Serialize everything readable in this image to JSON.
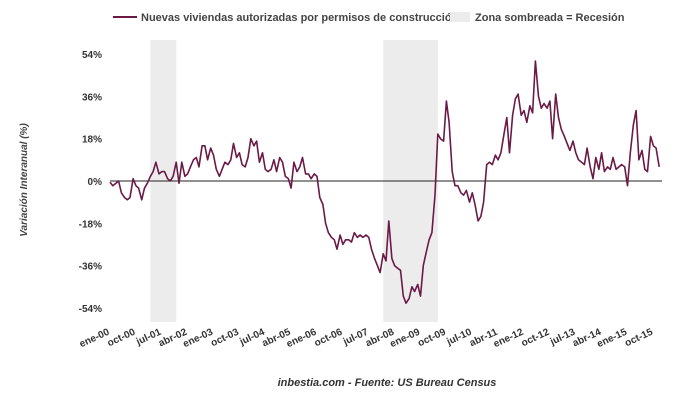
{
  "chart_data": {
    "type": "line",
    "title": "",
    "ylabel": "Variación Interanual (%)",
    "caption": "inbestia.com - Fuente: US Bureau Census",
    "ylim": [
      -60,
      60
    ],
    "yticks": [
      54,
      36,
      18,
      0,
      -18,
      -36,
      -54
    ],
    "ytick_labels": [
      "54%",
      "36%",
      "18%",
      "0%",
      "-18%",
      "-36%",
      "-54%"
    ],
    "xlim": [
      2000.0,
      2016.0
    ],
    "xticks": [
      {
        "label": "ene-00",
        "x": 2000.0
      },
      {
        "label": "oct-00",
        "x": 2000.75
      },
      {
        "label": "jul-01",
        "x": 2001.5
      },
      {
        "label": "abr-02",
        "x": 2002.25
      },
      {
        "label": "ene-03",
        "x": 2003.0
      },
      {
        "label": "oct-03",
        "x": 2003.75
      },
      {
        "label": "jul-04",
        "x": 2004.5
      },
      {
        "label": "abr-05",
        "x": 2005.25
      },
      {
        "label": "ene-06",
        "x": 2006.0
      },
      {
        "label": "oct-06",
        "x": 2006.75
      },
      {
        "label": "jul-07",
        "x": 2007.5
      },
      {
        "label": "abr-08",
        "x": 2008.25
      },
      {
        "label": "ene-09",
        "x": 2009.0
      },
      {
        "label": "oct-09",
        "x": 2009.75
      },
      {
        "label": "jul-10",
        "x": 2010.5
      },
      {
        "label": "abr-11",
        "x": 2011.25
      },
      {
        "label": "ene-12",
        "x": 2012.0
      },
      {
        "label": "oct-12",
        "x": 2012.75
      },
      {
        "label": "jul-13",
        "x": 2013.5
      },
      {
        "label": "abr-14",
        "x": 2014.25
      },
      {
        "label": "ene-15",
        "x": 2015.0
      },
      {
        "label": "oct-15",
        "x": 2015.75
      }
    ],
    "legend": {
      "series_label": "Nuevas viviendas autorizadas por permisos de construcción",
      "recession_label": "Zona sombreada = Recesión"
    },
    "recessions": [
      {
        "start": 2001.17,
        "end": 2001.92
      },
      {
        "start": 2007.92,
        "end": 2009.5
      }
    ],
    "colors": {
      "series": "#6b1a45",
      "recession": "#ececec",
      "zero_line": "#222222"
    },
    "series": [
      {
        "name": "Nuevas viviendas autorizadas por permisos de construcción",
        "points": [
          [
            2000.0,
            -0.5
          ],
          [
            2000.08,
            -2
          ],
          [
            2000.17,
            -1
          ],
          [
            2000.25,
            0
          ],
          [
            2000.33,
            -5
          ],
          [
            2000.42,
            -7
          ],
          [
            2000.5,
            -8
          ],
          [
            2000.58,
            -7
          ],
          [
            2000.67,
            1
          ],
          [
            2000.75,
            -2
          ],
          [
            2000.83,
            -3
          ],
          [
            2000.92,
            -8
          ],
          [
            2001.0,
            -3
          ],
          [
            2001.08,
            -1
          ],
          [
            2001.17,
            2
          ],
          [
            2001.25,
            4
          ],
          [
            2001.33,
            8
          ],
          [
            2001.42,
            3
          ],
          [
            2001.5,
            4
          ],
          [
            2001.58,
            4
          ],
          [
            2001.67,
            1
          ],
          [
            2001.75,
            0
          ],
          [
            2001.83,
            2
          ],
          [
            2001.92,
            8
          ],
          [
            2002.0,
            -1
          ],
          [
            2002.08,
            8
          ],
          [
            2002.17,
            2
          ],
          [
            2002.25,
            3
          ],
          [
            2002.33,
            6
          ],
          [
            2002.42,
            9
          ],
          [
            2002.5,
            10
          ],
          [
            2002.58,
            6
          ],
          [
            2002.67,
            15
          ],
          [
            2002.75,
            15
          ],
          [
            2002.83,
            9
          ],
          [
            2002.92,
            14
          ],
          [
            2003.0,
            11
          ],
          [
            2003.08,
            5
          ],
          [
            2003.17,
            2
          ],
          [
            2003.25,
            5
          ],
          [
            2003.33,
            8
          ],
          [
            2003.42,
            7
          ],
          [
            2003.5,
            9
          ],
          [
            2003.58,
            16
          ],
          [
            2003.67,
            10
          ],
          [
            2003.75,
            12
          ],
          [
            2003.83,
            7
          ],
          [
            2003.92,
            6
          ],
          [
            2004.0,
            10
          ],
          [
            2004.08,
            18
          ],
          [
            2004.17,
            15
          ],
          [
            2004.25,
            17
          ],
          [
            2004.33,
            8
          ],
          [
            2004.42,
            12
          ],
          [
            2004.5,
            5
          ],
          [
            2004.58,
            4
          ],
          [
            2004.67,
            5
          ],
          [
            2004.75,
            9
          ],
          [
            2004.83,
            4
          ],
          [
            2004.92,
            10
          ],
          [
            2005.0,
            8
          ],
          [
            2005.08,
            2
          ],
          [
            2005.17,
            1
          ],
          [
            2005.25,
            -3
          ],
          [
            2005.33,
            8
          ],
          [
            2005.42,
            4
          ],
          [
            2005.5,
            6
          ],
          [
            2005.58,
            10
          ],
          [
            2005.67,
            3
          ],
          [
            2005.75,
            3
          ],
          [
            2005.83,
            1
          ],
          [
            2005.92,
            3
          ],
          [
            2006.0,
            2
          ],
          [
            2006.08,
            -7
          ],
          [
            2006.17,
            -10
          ],
          [
            2006.25,
            -18
          ],
          [
            2006.33,
            -22
          ],
          [
            2006.42,
            -24
          ],
          [
            2006.5,
            -25
          ],
          [
            2006.58,
            -29
          ],
          [
            2006.67,
            -23
          ],
          [
            2006.75,
            -27
          ],
          [
            2006.83,
            -25
          ],
          [
            2006.92,
            -25
          ],
          [
            2007.0,
            -26
          ],
          [
            2007.08,
            -22
          ],
          [
            2007.17,
            -24
          ],
          [
            2007.25,
            -23
          ],
          [
            2007.33,
            -24
          ],
          [
            2007.42,
            -23
          ],
          [
            2007.5,
            -24
          ],
          [
            2007.58,
            -29
          ],
          [
            2007.67,
            -33
          ],
          [
            2007.75,
            -36
          ],
          [
            2007.83,
            -39
          ],
          [
            2007.92,
            -31
          ],
          [
            2008.0,
            -34
          ],
          [
            2008.08,
            -17
          ],
          [
            2008.17,
            -33
          ],
          [
            2008.25,
            -36
          ],
          [
            2008.33,
            -37
          ],
          [
            2008.42,
            -38
          ],
          [
            2008.5,
            -49
          ],
          [
            2008.58,
            -52
          ],
          [
            2008.67,
            -50
          ],
          [
            2008.75,
            -45
          ],
          [
            2008.83,
            -47
          ],
          [
            2008.92,
            -44
          ],
          [
            2009.0,
            -49
          ],
          [
            2009.08,
            -36
          ],
          [
            2009.17,
            -30
          ],
          [
            2009.25,
            -25
          ],
          [
            2009.33,
            -22
          ],
          [
            2009.42,
            -6
          ],
          [
            2009.5,
            20
          ],
          [
            2009.58,
            18
          ],
          [
            2009.67,
            17
          ],
          [
            2009.75,
            34
          ],
          [
            2009.83,
            25
          ],
          [
            2009.92,
            4
          ],
          [
            2010.0,
            -2
          ],
          [
            2010.08,
            -2
          ],
          [
            2010.17,
            -5
          ],
          [
            2010.25,
            -6
          ],
          [
            2010.33,
            -4
          ],
          [
            2010.42,
            -9
          ],
          [
            2010.5,
            -5
          ],
          [
            2010.58,
            -10
          ],
          [
            2010.67,
            -17
          ],
          [
            2010.75,
            -15
          ],
          [
            2010.83,
            -9
          ],
          [
            2010.92,
            7
          ],
          [
            2011.0,
            8
          ],
          [
            2011.08,
            7
          ],
          [
            2011.17,
            11
          ],
          [
            2011.25,
            9
          ],
          [
            2011.33,
            12
          ],
          [
            2011.42,
            20
          ],
          [
            2011.5,
            27
          ],
          [
            2011.58,
            12
          ],
          [
            2011.67,
            28
          ],
          [
            2011.75,
            35
          ],
          [
            2011.83,
            37
          ],
          [
            2011.92,
            28
          ],
          [
            2012.0,
            30
          ],
          [
            2012.08,
            25
          ],
          [
            2012.17,
            32
          ],
          [
            2012.25,
            29
          ],
          [
            2012.33,
            51
          ],
          [
            2012.42,
            36
          ],
          [
            2012.5,
            31
          ],
          [
            2012.58,
            33
          ],
          [
            2012.67,
            31
          ],
          [
            2012.75,
            34
          ],
          [
            2012.83,
            18
          ],
          [
            2012.92,
            37
          ],
          [
            2013.0,
            27
          ],
          [
            2013.08,
            22
          ],
          [
            2013.17,
            19
          ],
          [
            2013.25,
            16
          ],
          [
            2013.33,
            13
          ],
          [
            2013.42,
            17
          ],
          [
            2013.5,
            12
          ],
          [
            2013.58,
            9
          ],
          [
            2013.67,
            8
          ],
          [
            2013.75,
            7
          ],
          [
            2013.83,
            14
          ],
          [
            2013.92,
            6
          ],
          [
            2014.0,
            1
          ],
          [
            2014.08,
            10
          ],
          [
            2014.17,
            5
          ],
          [
            2014.25,
            12
          ],
          [
            2014.33,
            4
          ],
          [
            2014.42,
            6
          ],
          [
            2014.5,
            5
          ],
          [
            2014.58,
            10
          ],
          [
            2014.67,
            5
          ],
          [
            2014.75,
            6
          ],
          [
            2014.83,
            7
          ],
          [
            2014.92,
            6
          ],
          [
            2015.0,
            -2
          ],
          [
            2015.08,
            12
          ],
          [
            2015.17,
            24
          ],
          [
            2015.25,
            30
          ],
          [
            2015.33,
            9
          ],
          [
            2015.42,
            13
          ],
          [
            2015.5,
            5
          ],
          [
            2015.58,
            4
          ],
          [
            2015.67,
            19
          ],
          [
            2015.75,
            15
          ],
          [
            2015.83,
            14
          ],
          [
            2015.92,
            6
          ]
        ]
      }
    ]
  }
}
